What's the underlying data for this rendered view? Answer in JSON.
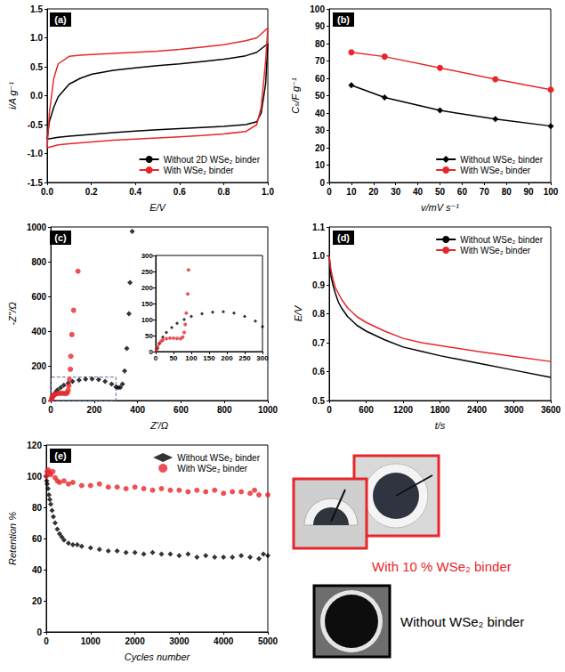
{
  "chart_data": [
    {
      "panel": "(a)",
      "type": "line",
      "x_label": "E/V",
      "y_label": "i/A g⁻¹",
      "xlim": [
        0,
        1
      ],
      "xticks": [
        {
          "value": 0,
          "label": "0.0"
        },
        0.2,
        0.4,
        0.6,
        0.8,
        {
          "value": 1,
          "label": "1.0"
        }
      ],
      "ylim": [
        -1.5,
        1.5
      ],
      "yticks": [
        -1.5,
        {
          "value": -1,
          "label": "-1.0"
        },
        -0.5,
        {
          "value": 0,
          "label": "0.0"
        },
        0.5,
        {
          "value": 1,
          "label": "1.0"
        },
        1.5
      ],
      "grid": false,
      "legend": "lower right",
      "x": [
        0,
        0.01,
        0.03,
        0.05,
        0.1,
        0.15,
        0.2,
        0.3,
        0.4,
        0.5,
        0.6,
        0.7,
        0.8,
        0.9,
        0.95,
        1.0,
        0.99,
        0.97,
        0.95,
        0.9,
        0.8,
        0.7,
        0.6,
        0.5,
        0.4,
        0.3,
        0.2,
        0.1,
        0.05,
        0.02,
        0
      ],
      "series": [
        {
          "name": "Without 2D WSe₂ binder",
          "color": "#000000",
          "values": [
            -0.75,
            -0.45,
            -0.2,
            -0.02,
            0.2,
            0.3,
            0.37,
            0.44,
            0.48,
            0.52,
            0.55,
            0.59,
            0.63,
            0.69,
            0.75,
            0.9,
            0.2,
            -0.3,
            -0.45,
            -0.5,
            -0.53,
            -0.55,
            -0.57,
            -0.59,
            -0.61,
            -0.64,
            -0.67,
            -0.7,
            -0.72,
            -0.74,
            -0.75
          ]
        },
        {
          "name": "With WSe₂ binder",
          "color": "#e8262a",
          "values": [
            -0.9,
            -0.3,
            0.3,
            0.55,
            0.68,
            0.7,
            0.71,
            0.73,
            0.75,
            0.77,
            0.8,
            0.84,
            0.88,
            0.95,
            1.0,
            1.17,
            0.6,
            -0.2,
            -0.5,
            -0.62,
            -0.66,
            -0.69,
            -0.71,
            -0.73,
            -0.75,
            -0.77,
            -0.8,
            -0.83,
            -0.85,
            -0.88,
            -0.9
          ]
        }
      ]
    },
    {
      "panel": "(b)",
      "type": "line",
      "x_label": "v/mV s⁻¹",
      "y_label": "Cₛ/F g⁻¹",
      "xlim": [
        0,
        100
      ],
      "xticks": [
        0,
        10,
        20,
        30,
        40,
        50,
        60,
        70,
        80,
        90,
        100
      ],
      "ylim": [
        0,
        100
      ],
      "yticks": [
        0,
        10,
        20,
        30,
        40,
        50,
        60,
        70,
        80,
        90,
        100
      ],
      "grid": false,
      "legend": "lower right",
      "x": [
        10,
        25,
        50,
        75,
        100
      ],
      "series": [
        {
          "name": "Without WSe₂ binder",
          "color": "#000000",
          "marker": "diamond",
          "values": [
            56,
            49,
            41.5,
            36.5,
            32.5
          ]
        },
        {
          "name": "With WSe₂ binder",
          "color": "#e8262a",
          "marker": "circle",
          "values": [
            75,
            72.5,
            66,
            59.5,
            53.5
          ]
        }
      ]
    },
    {
      "panel": "(c)",
      "type": "scatter",
      "x_label": "Z'/Ω",
      "y_label": "-Z''/Ω",
      "xlim": [
        0,
        1000
      ],
      "xticks": [
        0,
        200,
        400,
        600,
        800,
        1000
      ],
      "ylim": [
        0,
        1000
      ],
      "yticks": [
        0,
        200,
        400,
        600,
        800,
        1000
      ],
      "grid": false,
      "inset": {
        "xlim": [
          0,
          300
        ],
        "xticks": [
          0,
          50,
          100,
          150,
          200,
          250,
          300
        ],
        "ylim": [
          0,
          300
        ],
        "yticks": [
          0,
          50,
          100,
          150,
          200,
          250,
          300
        ]
      },
      "zoom_box": {
        "x": [
          0,
          300
        ],
        "y": [
          0,
          135
        ]
      },
      "series": [
        {
          "color": "#000000",
          "marker": "diamond",
          "x": [
            5,
            10,
            20,
            30,
            45,
            60,
            80,
            100,
            130,
            160,
            190,
            220,
            250,
            280,
            300,
            310,
            320,
            330,
            340,
            350,
            360,
            365,
            375
          ],
          "values": [
            10,
            25,
            45,
            60,
            75,
            88,
            100,
            110,
            118,
            123,
            124,
            120,
            110,
            95,
            78,
            74,
            76,
            95,
            170,
            300,
            500,
            680,
            975
          ]
        },
        {
          "color": "#e8262a",
          "marker": "circle",
          "x": [
            2,
            5,
            10,
            15,
            20,
            30,
            40,
            50,
            60,
            70,
            76,
            80,
            83,
            86,
            90,
            92,
            97,
            105,
            125
          ],
          "values": [
            5,
            15,
            25,
            32,
            36,
            40,
            42,
            42,
            41,
            40,
            45,
            60,
            85,
            120,
            180,
            255,
            380,
            520,
            745
          ]
        }
      ]
    },
    {
      "panel": "(d)",
      "type": "line",
      "x_label": "t/s",
      "y_label": "E/V",
      "xlim": [
        0,
        3600
      ],
      "xticks": [
        0,
        600,
        1200,
        1800,
        2400,
        3000,
        3600
      ],
      "ylim": [
        0.5,
        1.1
      ],
      "yticks": [
        0.5,
        0.6,
        0.7,
        0.8,
        0.9,
        {
          "value": 1,
          "label": "1.0"
        },
        1.1
      ],
      "grid": false,
      "legend": "upper right",
      "x": [
        0,
        30,
        60,
        100,
        150,
        200,
        300,
        450,
        600,
        900,
        1200,
        1500,
        1800,
        2400,
        3000,
        3600
      ],
      "series": [
        {
          "name": "Without WSe₂ binder",
          "color": "#000000",
          "values": [
            1.0,
            0.93,
            0.9,
            0.87,
            0.84,
            0.82,
            0.79,
            0.76,
            0.74,
            0.71,
            0.685,
            0.67,
            0.655,
            0.63,
            0.605,
            0.58
          ]
        },
        {
          "name": "With WSe₂ binder",
          "color": "#e8262a",
          "values": [
            1.0,
            0.95,
            0.92,
            0.89,
            0.87,
            0.85,
            0.82,
            0.79,
            0.77,
            0.74,
            0.715,
            0.7,
            0.69,
            0.67,
            0.652,
            0.635
          ]
        }
      ]
    },
    {
      "panel": "(e)",
      "type": "scatter",
      "x_label": "Cycles number",
      "y_label": "Retention %",
      "xlim": [
        0,
        5000
      ],
      "xticks": [
        0,
        1000,
        2000,
        3000,
        4000,
        5000
      ],
      "ylim": [
        0,
        120
      ],
      "yticks": [
        0,
        20,
        40,
        60,
        80,
        100,
        120
      ],
      "grid": false,
      "legend": "upper right",
      "series": [
        {
          "name": "Without WSe₂ binder",
          "color": "#000000",
          "marker": "diamond",
          "x": [
            1,
            10,
            20,
            40,
            60,
            80,
            100,
            130,
            160,
            200,
            250,
            300,
            350,
            400,
            500,
            600,
            700,
            800,
            1000,
            1200,
            1400,
            1600,
            1800,
            2000,
            2200,
            2400,
            2600,
            2800,
            3000,
            3200,
            3400,
            3600,
            3800,
            4000,
            4200,
            4400,
            4600,
            4800,
            4900,
            5000
          ],
          "values": [
            100,
            97,
            95,
            92,
            88,
            85,
            82,
            78,
            74,
            70,
            66,
            63,
            61,
            59,
            57,
            56,
            56,
            55,
            54,
            53,
            52,
            52,
            51,
            51,
            50,
            51,
            50,
            50,
            49,
            50,
            48,
            49,
            48,
            48,
            48,
            49,
            48,
            47,
            50,
            49
          ]
        },
        {
          "name": "With WSe₂ binder",
          "color": "#e8262a",
          "marker": "circle",
          "x": [
            1,
            20,
            50,
            80,
            100,
            150,
            200,
            250,
            300,
            400,
            500,
            600,
            800,
            1000,
            1200,
            1400,
            1600,
            1800,
            2000,
            2200,
            2400,
            2600,
            2800,
            3000,
            3200,
            3400,
            3600,
            3800,
            4000,
            4200,
            4400,
            4600,
            4700,
            4800,
            5000
          ],
          "values": [
            100,
            103,
            104,
            102,
            101,
            103,
            99,
            97,
            96,
            97,
            95,
            96,
            94,
            94,
            95,
            93,
            93,
            92,
            93,
            92,
            91,
            92,
            91,
            91,
            90,
            91,
            90,
            91,
            89,
            90,
            90,
            89,
            91,
            88,
            88
          ]
        }
      ]
    }
  ],
  "photos": {
    "labels": [
      {
        "text": "With 10 % WSe₂ binder",
        "color": "#e8262a"
      },
      {
        "text": "Without WSe₂ binder",
        "color": "#000000"
      }
    ]
  }
}
